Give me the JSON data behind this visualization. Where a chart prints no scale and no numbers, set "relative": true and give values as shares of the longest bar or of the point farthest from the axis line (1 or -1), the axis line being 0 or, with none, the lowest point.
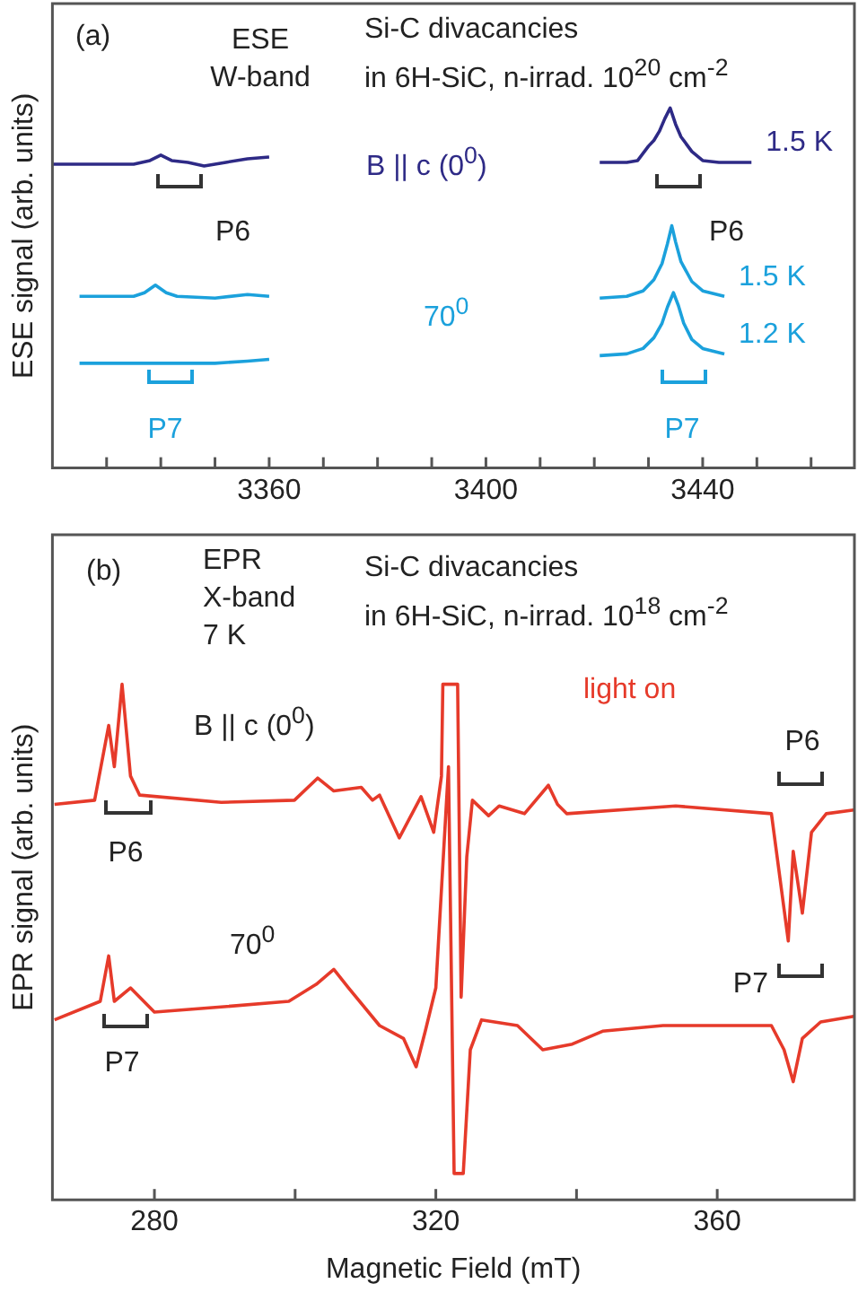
{
  "chart_data": [
    {
      "type": "line",
      "relative": true,
      "ylabel": "ESE signal (arb. units)",
      "xlim": [
        3320,
        3468
      ],
      "xticks": [
        {
          "value": 3330,
          "label": null
        },
        {
          "value": 3340,
          "label": null
        },
        {
          "value": 3350,
          "label": null
        },
        3360,
        {
          "value": 3370,
          "label": null
        },
        {
          "value": 3380,
          "label": null
        },
        {
          "value": 3390,
          "label": null
        },
        3400,
        {
          "value": 3410,
          "label": null
        },
        {
          "value": 3420,
          "label": null
        },
        {
          "value": 3430,
          "label": null
        },
        3440,
        {
          "value": 3450,
          "label": null
        },
        {
          "value": 3460,
          "label": null
        }
      ],
      "annotations": [
        "(a)",
        "ESE\nW-band",
        "Si-C divacancies\nin 6H-SiC, n-irrad. 10$^{20}$ cm$^{-2}$",
        "B || c (0$^{0}$)",
        "70$^{0}$",
        "P6",
        "P7",
        "P6",
        "P7"
      ],
      "series": [
        {
          "color": "#2e2a86",
          "x": [
            3320,
            3335,
            3338,
            3340,
            3342,
            3345,
            3348,
            3352,
            3356,
            3360
          ],
          "values": [
            0.844,
            0.844,
            0.854,
            0.869,
            0.854,
            0.849,
            0.839,
            0.849,
            0.859,
            0.864
          ]
        },
        {
          "color": "#1ba1dc",
          "x": [
            3325,
            3335,
            3337,
            3339,
            3341,
            3343,
            3350,
            3356,
            3360
          ],
          "values": [
            0.477,
            0.477,
            0.487,
            0.508,
            0.487,
            0.477,
            0.472,
            0.482,
            0.477
          ]
        },
        {
          "color": "#1ba1dc",
          "x": [
            3325,
            3340,
            3350,
            3356,
            3360
          ],
          "values": [
            0.291,
            0.291,
            0.291,
            0.297,
            0.302
          ]
        },
        {
          "name": "1.5 K",
          "color": "#2e2a86",
          "x": [
            3421,
            3426,
            3428,
            3430,
            3431,
            3432,
            3433,
            3434,
            3435,
            3436,
            3438,
            3440,
            3443,
            3449
          ],
          "values": [
            0.849,
            0.849,
            0.854,
            0.894,
            0.91,
            0.935,
            0.97,
            1,
            0.955,
            0.92,
            0.879,
            0.854,
            0.849,
            0.849
          ]
        },
        {
          "name": "1.5 K",
          "color": "#1ba1dc",
          "x": [
            3421,
            3426,
            3429,
            3431,
            3432.5,
            3433.5,
            3434.3,
            3435,
            3436,
            3438,
            3440,
            3444
          ],
          "values": [
            0.472,
            0.477,
            0.492,
            0.523,
            0.568,
            0.623,
            0.673,
            0.628,
            0.573,
            0.518,
            0.492,
            0.477
          ]
        },
        {
          "name": "1.2 K",
          "color": "#1ba1dc",
          "x": [
            3421,
            3426,
            3429,
            3431,
            3432.5,
            3433.5,
            3434.6,
            3435.5,
            3436.5,
            3438,
            3440,
            3444
          ],
          "values": [
            0.312,
            0.317,
            0.332,
            0.362,
            0.402,
            0.447,
            0.487,
            0.452,
            0.402,
            0.357,
            0.332,
            0.317
          ]
        }
      ]
    },
    {
      "type": "line",
      "relative": true,
      "ylabel": "EPR signal (arb. units)",
      "xlabel": "Magnetic Field (mT)",
      "xlim": [
        265.5,
        379.5
      ],
      "xticks": [
        280,
        {
          "value": 300,
          "label": null
        },
        320,
        {
          "value": 340,
          "label": null
        },
        360
      ],
      "annotations": [
        "(b)",
        "EPR\nX-band\n7 K",
        "Si-C divacancies\nin 6H-SiC, n-irrad. 10$^{18}$ cm$^{-2}$",
        "B || c (0$^{0}$)",
        "70$^{0}$",
        "light on",
        "P6",
        "P7",
        "P6",
        "P7"
      ],
      "series": [
        {
          "color": "#e63a2a",
          "x": [
            265.8,
            271.5,
            273.5,
            274.3,
            275.4,
            276.6,
            277.9,
            289.5,
            299.9,
            303.2,
            305.5,
            309.4,
            311,
            312,
            314.8,
            317.9,
            319.7,
            320.8,
            321,
            323.1,
            323.6,
            324.4,
            325.2,
            327.5,
            329,
            332.6,
            336,
            337.3,
            338.6,
            354.1,
            367.7,
            370.1,
            370.8,
            372.1,
            373.4,
            375.5,
            379.4
          ],
          "values": [
            0.767,
            0.775,
            0.92,
            0.84,
            1,
            0.822,
            0.785,
            0.771,
            0.775,
            0.818,
            0.793,
            0.8,
            0.775,
            0.785,
            0.702,
            0.782,
            0.713,
            0.822,
            1,
            1,
            0.393,
            0.665,
            0.775,
            0.745,
            0.764,
            0.749,
            0.804,
            0.767,
            0.749,
            0.764,
            0.749,
            0.502,
            0.676,
            0.556,
            0.713,
            0.749,
            0.756
          ]
        },
        {
          "color": "#e63a2a",
          "x": [
            265.8,
            272.3,
            273.5,
            274.3,
            276.6,
            280,
            290.3,
            299.1,
            303,
            305.5,
            307.6,
            312,
            315.4,
            317.2,
            318.5,
            320,
            321.8,
            322.6,
            323.9,
            324.9,
            326.5,
            331.6,
            335.2,
            339.4,
            343.7,
            352.3,
            367.7,
            369.5,
            370.8,
            372.1,
            374.7,
            379.4
          ],
          "values": [
            0.349,
            0.385,
            0.473,
            0.385,
            0.411,
            0.364,
            0.375,
            0.385,
            0.418,
            0.447,
            0.411,
            0.338,
            0.313,
            0.258,
            0.327,
            0.411,
            0.84,
            0.051,
            0.051,
            0.291,
            0.349,
            0.338,
            0.291,
            0.302,
            0.327,
            0.338,
            0.338,
            0.291,
            0.229,
            0.313,
            0.345,
            0.356
          ]
        }
      ]
    }
  ]
}
